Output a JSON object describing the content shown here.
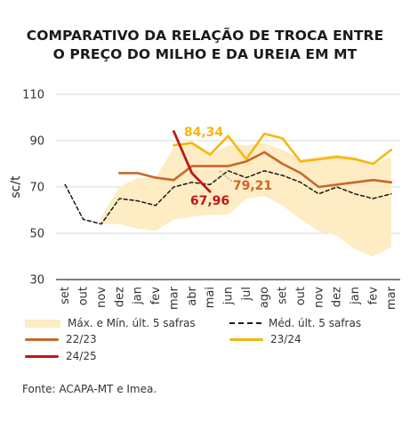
{
  "chart_data": {
    "type": "line",
    "title_lines": [
      "COMPARATIVO DA RELAÇÃO DE TROCA ENTRE",
      "O PREÇO DO MILHO E DA UREIA EM MT"
    ],
    "ylabel": "sc/t",
    "ylim": [
      30,
      110
    ],
    "yticks": [
      30,
      50,
      70,
      90,
      110
    ],
    "categories": [
      "set",
      "out",
      "nov",
      "dez",
      "jan",
      "fev",
      "mar",
      "abr",
      "mai",
      "jun",
      "jul",
      "ago",
      "set",
      "out",
      "nov",
      "dez",
      "jan",
      "fev",
      "mar"
    ],
    "band": {
      "name": "Máx. e Mín. últ. 5 safras",
      "min": [
        null,
        null,
        54,
        54,
        52,
        51,
        56,
        57,
        58,
        58,
        65,
        66,
        62,
        56,
        51,
        49,
        43,
        40,
        44
      ],
      "max": [
        null,
        null,
        57,
        70,
        74,
        74,
        87,
        89,
        84,
        88,
        88,
        89,
        86,
        82,
        83,
        84,
        83,
        80,
        83
      ]
    },
    "series": [
      {
        "name": "Méd. últ. 5 safras",
        "values": [
          71,
          56,
          54,
          65,
          64,
          62,
          70,
          72,
          71,
          77,
          74,
          77,
          75,
          72,
          67,
          70,
          67,
          65,
          67
        ]
      },
      {
        "name": "22/23",
        "values": [
          null,
          null,
          null,
          76,
          76,
          74,
          73,
          79,
          79,
          79,
          81,
          85,
          80,
          76,
          70,
          71,
          72,
          73,
          72
        ]
      },
      {
        "name": "23/24",
        "values": [
          null,
          null,
          null,
          null,
          null,
          null,
          88,
          89,
          84,
          92,
          82,
          93,
          91,
          81,
          82,
          83,
          82,
          80,
          86
        ]
      },
      {
        "name": "24/25",
        "values": [
          null,
          null,
          null,
          null,
          null,
          null,
          94,
          76,
          67.96,
          null,
          null,
          null,
          null,
          null,
          null,
          null,
          null,
          null,
          null
        ]
      }
    ],
    "annotations": [
      {
        "text": "84,34",
        "series": "23/24"
      },
      {
        "text": "79,21",
        "series": "22/23"
      },
      {
        "text": "67,96",
        "series": "24/25"
      }
    ],
    "grid": "horizontal",
    "legend": "bottom"
  },
  "colors": {
    "band": "#fdecc4",
    "avg": "#1a1a1a",
    "s2223": "#c8682a",
    "s2324": "#f5b70f",
    "s2425": "#bf1717",
    "grid": "#d9d9d9"
  },
  "legend_labels": {
    "band": "Máx. e Mín. últ. 5 safras",
    "avg": "Méd. últ. 5 safras",
    "s2223": "22/23",
    "s2324": "23/24",
    "s2425": "24/25"
  },
  "source": "Fonte: ACAPA-MT e Imea."
}
